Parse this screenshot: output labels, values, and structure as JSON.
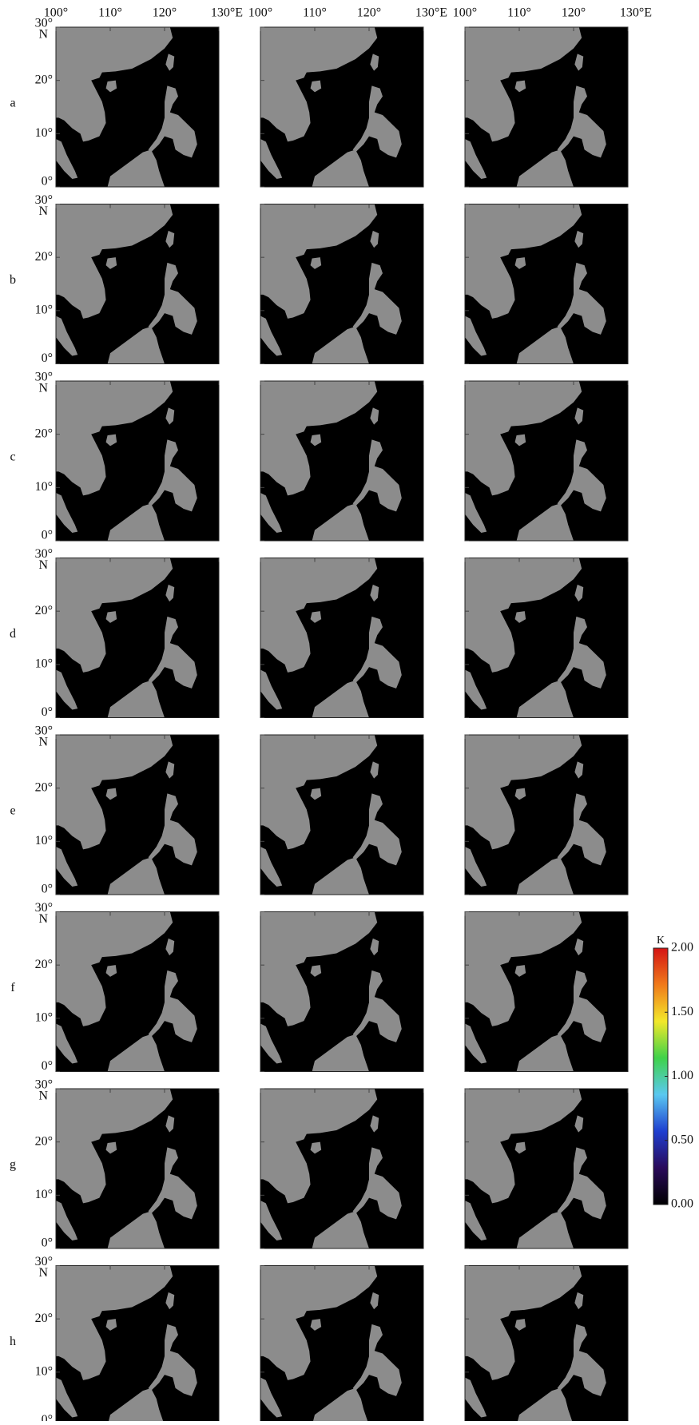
{
  "figure": {
    "lon_range": [
      100,
      130
    ],
    "lat_range": [
      0,
      30
    ],
    "lon_ticks": [
      {
        "value": 100,
        "label": "100°"
      },
      {
        "value": 110,
        "label": "110°"
      },
      {
        "value": 120,
        "label": "120°"
      },
      {
        "value": 130,
        "label": "130°E"
      }
    ],
    "lat_ticks": [
      {
        "value": 30,
        "label": "30°"
      },
      {
        "value": 20,
        "label": "20°"
      },
      {
        "value": 10,
        "label": "10°"
      },
      {
        "value": 0,
        "label": "0°"
      }
    ],
    "lat_hemisphere": "N",
    "rows": [
      "a",
      "b",
      "c",
      "d",
      "e",
      "f",
      "g",
      "h"
    ],
    "colorbar": {
      "unit": "K",
      "range": [
        0,
        2
      ],
      "ticks": [
        {
          "value": 2,
          "label": "2.00"
        },
        {
          "value": 1.5,
          "label": "1.50"
        },
        {
          "value": 1,
          "label": "1.00"
        },
        {
          "value": 0.5,
          "label": "0.50"
        },
        {
          "value": 0,
          "label": "0.00"
        }
      ],
      "colors": [
        "#000000",
        "#2a0a5a",
        "#1f3fd0",
        "#5ac8f0",
        "#3fd24a",
        "#f2e82a",
        "#f07a1a",
        "#d41414"
      ]
    }
  }
}
